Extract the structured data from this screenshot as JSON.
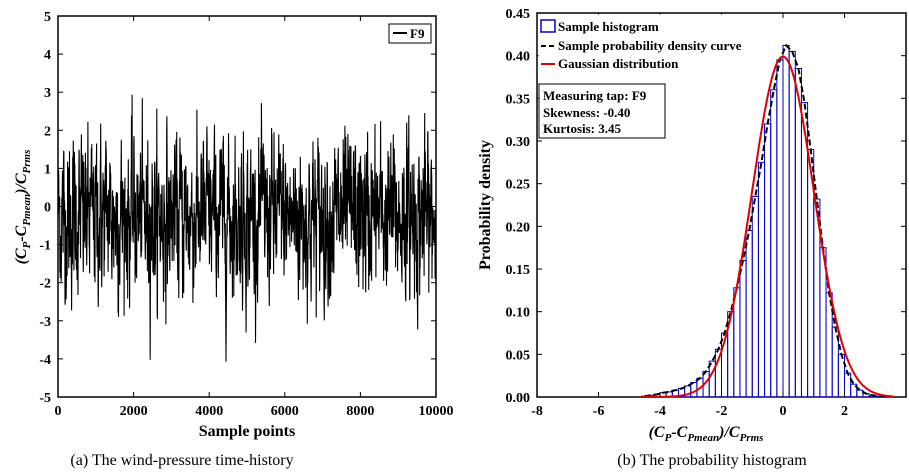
{
  "chart_data": [
    {
      "type": "line",
      "caption": "(a) The wind-pressure time-history",
      "xlabel": "Sample points",
      "ylabel_parts": [
        "(C",
        "P",
        "-C",
        "Pmean",
        ")/C",
        "Prms"
      ],
      "xlim": [
        0,
        10000
      ],
      "ylim": [
        -5,
        5
      ],
      "x_ticks": [
        "0",
        "2000",
        "4000",
        "6000",
        "8000",
        "10000"
      ],
      "y_ticks": [
        "5",
        "4",
        "3",
        "2",
        "1",
        "0",
        "-1",
        "-2",
        "-3",
        "-4",
        "-5"
      ],
      "legend": [
        {
          "name": "F9",
          "color": "#000000"
        }
      ],
      "series": [
        {
          "name": "F9",
          "color": "#000000",
          "n_points": 10000,
          "mean": 0,
          "std": 1,
          "min": -4.2,
          "max": 3.3
        }
      ],
      "grid": false,
      "legend_position": "top-right"
    },
    {
      "type": "bar",
      "caption": "(b) The probability histogram",
      "xlabel_parts": [
        "(C",
        "P",
        "-C",
        "Pmean",
        ")/C",
        "Prms"
      ],
      "ylabel": "Probability density",
      "xlim": [
        -8,
        4
      ],
      "ylim": [
        0,
        0.45
      ],
      "x_ticks": [
        "-8",
        "-6",
        "-4",
        "-2",
        "0",
        "2"
      ],
      "y_ticks": [
        "0.45",
        "0.40",
        "0.35",
        "0.30",
        "0.25",
        "0.20",
        "0.15",
        "0.10",
        "0.05",
        "0.00"
      ],
      "legend": [
        {
          "name": "Sample histogram",
          "color": "#0000cc"
        },
        {
          "name": "Sample probability density curve",
          "color": "#000000"
        },
        {
          "name": "Gaussian distribution",
          "color": "#e00000"
        }
      ],
      "annotation": [
        "Measuring tap: F9",
        "Skewness: -0.40",
        "Kurtosis: 3.45"
      ],
      "histogram": {
        "bin_width": 0.2,
        "bin_centers": [
          -4.5,
          -4.3,
          -4.1,
          -3.9,
          -3.7,
          -3.5,
          -3.3,
          -3.1,
          -2.9,
          -2.7,
          -2.5,
          -2.3,
          -2.1,
          -1.9,
          -1.7,
          -1.5,
          -1.3,
          -1.1,
          -0.9,
          -0.7,
          -0.5,
          -0.3,
          -0.1,
          0.1,
          0.3,
          0.5,
          0.7,
          0.9,
          1.1,
          1.3,
          1.5,
          1.7,
          1.9,
          2.1,
          2.3,
          2.5,
          2.7,
          2.9,
          3.1,
          3.3
        ],
        "densities": [
          0.001,
          0.002,
          0.003,
          0.005,
          0.006,
          0.008,
          0.01,
          0.013,
          0.017,
          0.022,
          0.03,
          0.042,
          0.056,
          0.075,
          0.1,
          0.128,
          0.16,
          0.195,
          0.235,
          0.275,
          0.32,
          0.36,
          0.395,
          0.412,
          0.405,
          0.385,
          0.345,
          0.29,
          0.232,
          0.175,
          0.122,
          0.082,
          0.05,
          0.028,
          0.015,
          0.008,
          0.004,
          0.002,
          0.001,
          0.0005
        ]
      },
      "gaussian": {
        "mean": 0,
        "std": 1,
        "color": "#e00000"
      },
      "grid": false,
      "legend_position": "top-right"
    }
  ]
}
